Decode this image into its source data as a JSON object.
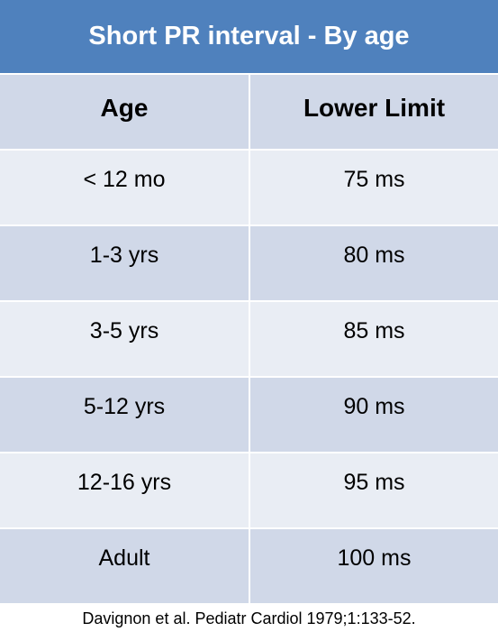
{
  "header": {
    "title": "Short PR interval - By age"
  },
  "table": {
    "columns": [
      "Age",
      "Lower Limit"
    ],
    "rows": [
      [
        "< 12 mo",
        "75 ms"
      ],
      [
        "1-3 yrs",
        "80 ms"
      ],
      [
        "3-5 yrs",
        "85 ms"
      ],
      [
        "5-12 yrs",
        "90 ms"
      ],
      [
        "12-16 yrs",
        "95 ms"
      ],
      [
        "Adult",
        "100 ms"
      ]
    ]
  },
  "footer": {
    "citation": "Davignon et al. Pediatr Cardiol 1979;1:133-52."
  }
}
